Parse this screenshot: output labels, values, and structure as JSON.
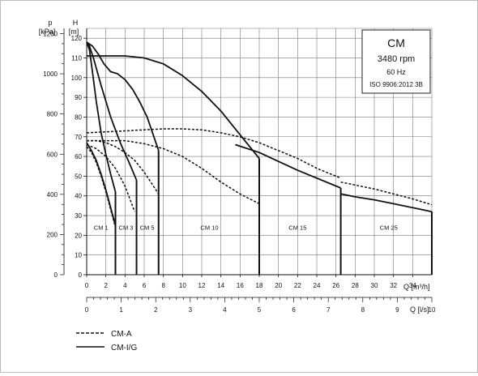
{
  "chart_data": {
    "type": "line",
    "infobox": {
      "title": "CM",
      "rpm": "3480 rpm",
      "hz": "60 Hz",
      "standard": "ISO 9906:2012 3B"
    },
    "axes": {
      "left_outer_label": "p",
      "left_outer_unit": "[kPa]",
      "left_inner_label": "H",
      "left_inner_unit": "[m]",
      "bottom_label": "Q [m³/h]",
      "bottom_label_alt": "Q [l/s]"
    },
    "xlim": [
      0,
      36
    ],
    "ylim": [
      0,
      125
    ],
    "x_ticks": [
      0,
      2,
      4,
      6,
      8,
      10,
      12,
      14,
      16,
      18,
      20,
      22,
      24,
      26,
      28,
      30,
      32,
      34
    ],
    "y_ticks_m": [
      0,
      10,
      20,
      30,
      40,
      50,
      60,
      70,
      80,
      90,
      100,
      110,
      120
    ],
    "kpa_ticks": [
      0,
      200,
      400,
      600,
      800,
      1000,
      1200
    ],
    "ls_ticks": [
      0,
      1,
      2,
      3,
      4,
      5,
      6,
      7,
      8,
      9,
      10
    ],
    "grid": true,
    "legend": {
      "placement": "bottom-left",
      "items": [
        {
          "label": "CM-A",
          "style": "dashed"
        },
        {
          "label": "CM-I/G",
          "style": "solid"
        }
      ]
    },
    "series": [
      {
        "key": "CM1-A",
        "style": "dashed",
        "x": [
          0,
          0.5,
          1.0,
          1.5,
          2.0,
          2.5,
          3.0
        ],
        "y": [
          65,
          62,
          57,
          50,
          42,
          33,
          24
        ],
        "cutoff": null
      },
      {
        "key": "CM3-A",
        "style": "dashed",
        "x": [
          0,
          1,
          2,
          3,
          4,
          5.0
        ],
        "y": [
          66,
          64,
          60,
          54,
          45,
          32
        ],
        "cutoff": null
      },
      {
        "key": "CM5-A",
        "style": "dashed",
        "x": [
          0,
          1,
          2,
          3,
          4,
          5,
          6,
          7.5
        ],
        "y": [
          68,
          68,
          67,
          65,
          62,
          58,
          52,
          41
        ],
        "cutoff": null
      },
      {
        "key": "CM10-A",
        "style": "dashed",
        "x": [
          0,
          2,
          4,
          6,
          8,
          10,
          12,
          14,
          16,
          18
        ],
        "y": [
          68,
          68,
          68,
          66.5,
          64,
          60,
          54,
          47,
          41,
          36
        ],
        "cutoff": null
      },
      {
        "key": "CM15-A",
        "style": "dashed",
        "x": [
          0,
          2,
          4,
          6,
          8,
          10,
          12,
          14,
          16,
          18,
          20,
          22,
          24,
          26.5
        ],
        "y": [
          72,
          72.5,
          73,
          73.5,
          74,
          74,
          73.5,
          72,
          70,
          67,
          63,
          59,
          54,
          49
        ],
        "cutoff": null
      },
      {
        "key": "CM25-A",
        "style": "dashed",
        "x": [
          26.5,
          28,
          30,
          32,
          34,
          36
        ],
        "y": [
          47,
          45.5,
          43.5,
          41,
          38.5,
          35.5
        ],
        "cutoff": null
      },
      {
        "key": "CM1-I/G",
        "style": "solid",
        "x": [
          0,
          0.5,
          1.0,
          1.5,
          2.0,
          2.5,
          3.0
        ],
        "y": [
          67,
          63,
          58,
          51,
          43,
          34,
          25
        ],
        "cutoff": [
          [
            3.0,
            25
          ],
          [
            3.0,
            0
          ]
        ]
      },
      {
        "key": "CM3-I/G",
        "style": "solid",
        "x": [
          0,
          0.3,
          0.6,
          1.0,
          1.5,
          2.0,
          2.5,
          3.0
        ],
        "y": [
          118,
          114,
          103,
          88,
          72,
          61,
          51,
          42
        ],
        "cutoff": [
          [
            3.0,
            42
          ],
          [
            3.0,
            0
          ]
        ]
      },
      {
        "key": "CM5-I/G",
        "style": "solid",
        "x": [
          0,
          0.3,
          0.7,
          1.5,
          2.5,
          3.5,
          4.5,
          5.2
        ],
        "y": [
          118,
          116,
          110,
          96,
          80,
          67,
          56,
          48
        ],
        "cutoff": [
          [
            5.2,
            48
          ],
          [
            5.2,
            0
          ]
        ]
      },
      {
        "key": "CM10-I/G",
        "style": "solid",
        "x": [
          0,
          0.6,
          1.2,
          1.8,
          2.5,
          3.2,
          4.0,
          4.8,
          5.5,
          6.3,
          7.5
        ],
        "y": [
          118,
          116,
          112,
          107,
          103,
          102,
          99,
          94,
          88,
          80,
          63
        ],
        "cutoff": [
          [
            7.5,
            63
          ],
          [
            7.5,
            0
          ]
        ]
      },
      {
        "key": "CM15-I/G",
        "style": "solid",
        "x": [
          0,
          1,
          2,
          4,
          6,
          8,
          10,
          12,
          14,
          16,
          18
        ],
        "y": [
          111,
          111,
          111,
          111,
          110,
          107,
          101,
          93,
          83,
          71,
          59
        ],
        "cutoff": [
          [
            18,
            59
          ],
          [
            18,
            0
          ]
        ]
      },
      {
        "key": "CM25-I/G",
        "style": "solid",
        "x": [
          15.5,
          18,
          20,
          22,
          24,
          26.5
        ],
        "y": [
          66,
          62,
          57.5,
          53,
          49,
          44
        ],
        "cutoff": [
          [
            26.5,
            44
          ],
          [
            26.5,
            0
          ]
        ]
      },
      {
        "key": "CM25-I/G-tail",
        "style": "solid",
        "x": [
          26.5,
          28,
          30,
          32,
          34,
          36
        ],
        "y": [
          41,
          39.5,
          38,
          36,
          34,
          32
        ],
        "cutoff": [
          [
            36,
            32
          ],
          [
            36,
            0
          ]
        ]
      }
    ],
    "annotations": [
      {
        "text": "CM 1",
        "x": 1.5,
        "y": 24
      },
      {
        "text": "CM 3",
        "x": 4.1,
        "y": 24
      },
      {
        "text": "CM 5",
        "x": 6.3,
        "y": 24
      },
      {
        "text": "CM 10",
        "x": 12.8,
        "y": 24
      },
      {
        "text": "CM 15",
        "x": 22,
        "y": 24
      },
      {
        "text": "CM 25",
        "x": 31.5,
        "y": 24
      }
    ]
  }
}
